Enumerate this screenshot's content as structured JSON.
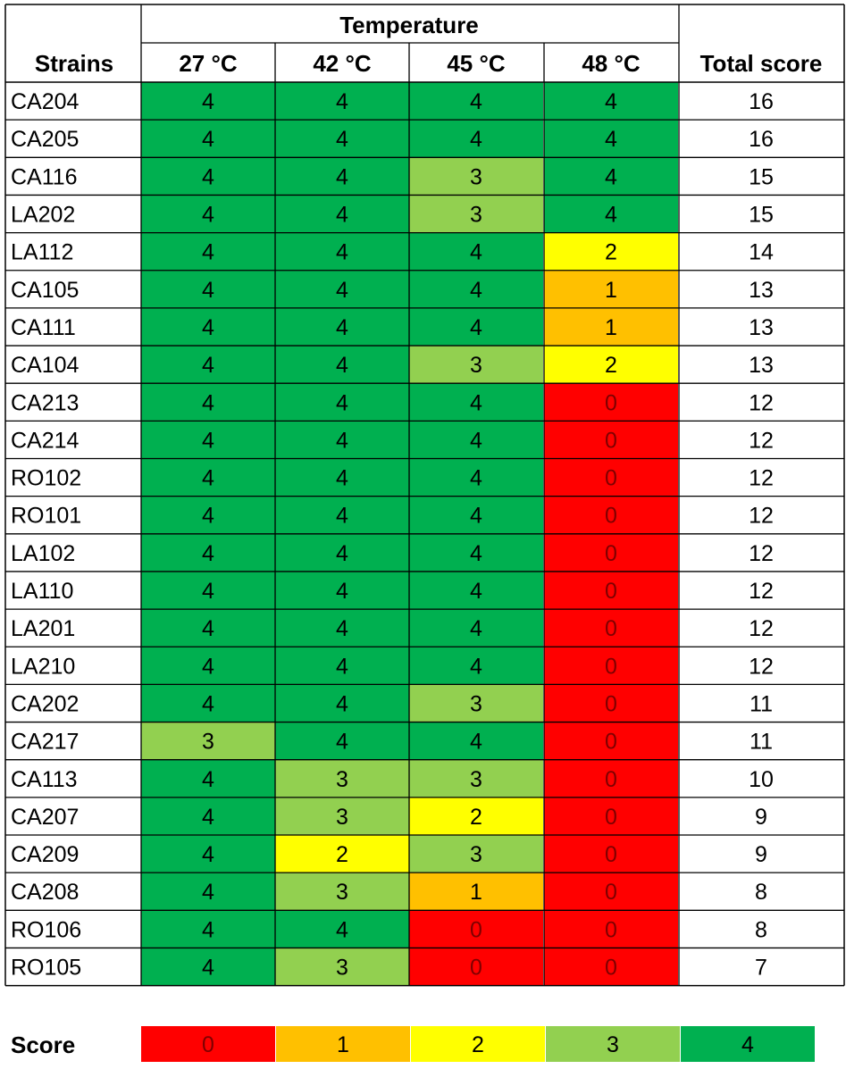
{
  "table": {
    "row_header_label": "Strains",
    "group_header_label": "Temperature",
    "total_header_label": "Total score",
    "legend_label": "Score"
  },
  "palette": {
    "0": "#ff0000",
    "1": "#ffc000",
    "2": "#ffff00",
    "3": "#92d050",
    "4": "#00b050"
  },
  "chart_data": {
    "type": "heatmap",
    "title": "",
    "column_group": "Temperature",
    "columns": [
      "27 °C",
      "42 °C",
      "45 °C",
      "48 °C"
    ],
    "rows": [
      "CA204",
      "CA205",
      "CA116",
      "LA202",
      "LA112",
      "CA105",
      "CA111",
      "CA104",
      "CA213",
      "CA214",
      "RO102",
      "RO101",
      "LA102",
      "LA110",
      "LA201",
      "LA210",
      "CA202",
      "CA217",
      "CA113",
      "CA207",
      "CA209",
      "CA208",
      "RO106",
      "RO105"
    ],
    "values": [
      [
        4,
        4,
        4,
        4
      ],
      [
        4,
        4,
        4,
        4
      ],
      [
        4,
        4,
        3,
        4
      ],
      [
        4,
        4,
        3,
        4
      ],
      [
        4,
        4,
        4,
        2
      ],
      [
        4,
        4,
        4,
        1
      ],
      [
        4,
        4,
        4,
        1
      ],
      [
        4,
        4,
        3,
        2
      ],
      [
        4,
        4,
        4,
        0
      ],
      [
        4,
        4,
        4,
        0
      ],
      [
        4,
        4,
        4,
        0
      ],
      [
        4,
        4,
        4,
        0
      ],
      [
        4,
        4,
        4,
        0
      ],
      [
        4,
        4,
        4,
        0
      ],
      [
        4,
        4,
        4,
        0
      ],
      [
        4,
        4,
        4,
        0
      ],
      [
        4,
        4,
        3,
        0
      ],
      [
        3,
        4,
        4,
        0
      ],
      [
        4,
        3,
        3,
        0
      ],
      [
        4,
        3,
        2,
        0
      ],
      [
        4,
        2,
        3,
        0
      ],
      [
        4,
        3,
        1,
        0
      ],
      [
        4,
        4,
        0,
        0
      ],
      [
        4,
        3,
        0,
        0
      ]
    ],
    "totals": [
      16,
      16,
      15,
      15,
      14,
      13,
      13,
      13,
      12,
      12,
      12,
      12,
      12,
      12,
      12,
      12,
      11,
      11,
      10,
      9,
      9,
      8,
      8,
      7
    ],
    "legend": {
      "title": "Score",
      "entries": [
        0,
        1,
        2,
        3,
        4
      ]
    }
  }
}
